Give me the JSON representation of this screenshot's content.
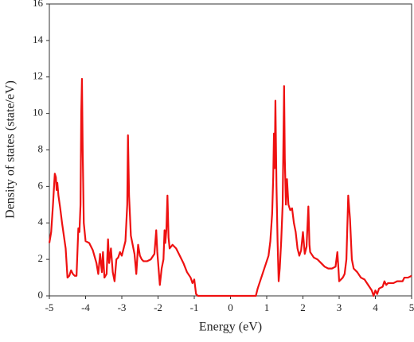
{
  "chart_data": {
    "type": "line",
    "x_label": "Energy (eV)",
    "y_label": "Density of states (state/eV)",
    "color": "#ee1111",
    "xlim": [
      -5,
      5
    ],
    "xticks": [
      -5,
      -4,
      -3,
      -2,
      -1,
      0,
      1,
      2,
      3,
      4,
      5
    ],
    "ylim": [
      0,
      16
    ],
    "yticks": [
      0,
      2,
      4,
      6,
      8,
      10,
      12,
      14,
      16
    ],
    "grid": false,
    "x": [
      -5,
      -4.95,
      -4.9,
      -4.85,
      -4.82,
      -4.8,
      -4.78,
      -4.75,
      -4.7,
      -4.65,
      -4.6,
      -4.55,
      -4.5,
      -4.45,
      -4.4,
      -4.35,
      -4.3,
      -4.25,
      -4.2,
      -4.17,
      -4.14,
      -4.12,
      -4.1,
      -4.08,
      -4.05,
      -4.0,
      -3.9,
      -3.8,
      -3.7,
      -3.65,
      -3.6,
      -3.55,
      -3.52,
      -3.48,
      -3.42,
      -3.38,
      -3.35,
      -3.3,
      -3.25,
      -3.2,
      -3.15,
      -3.1,
      -3.05,
      -3.0,
      -2.9,
      -2.85,
      -2.83,
      -2.8,
      -2.75,
      -2.7,
      -2.65,
      -2.6,
      -2.55,
      -2.5,
      -2.45,
      -2.4,
      -2.3,
      -2.2,
      -2.1,
      -2.05,
      -2.02,
      -1.95,
      -1.9,
      -1.85,
      -1.82,
      -1.8,
      -1.77,
      -1.74,
      -1.71,
      -1.68,
      -1.6,
      -1.5,
      -1.4,
      -1.3,
      -1.2,
      -1.1,
      -1.05,
      -1.0,
      -0.95,
      -0.9,
      0.7,
      0.75,
      0.8,
      0.85,
      0.9,
      0.95,
      1.0,
      1.05,
      1.1,
      1.15,
      1.18,
      1.2,
      1.22,
      1.24,
      1.27,
      1.3,
      1.33,
      1.36,
      1.4,
      1.44,
      1.48,
      1.5,
      1.53,
      1.56,
      1.6,
      1.65,
      1.7,
      1.75,
      1.8,
      1.85,
      1.9,
      1.95,
      2.0,
      2.05,
      2.1,
      2.15,
      2.18,
      2.2,
      2.3,
      2.4,
      2.5,
      2.6,
      2.7,
      2.8,
      2.9,
      2.95,
      2.98,
      3.0,
      3.1,
      3.15,
      3.2,
      3.25,
      3.3,
      3.35,
      3.4,
      3.5,
      3.6,
      3.7,
      3.8,
      3.9,
      3.95,
      4.0,
      4.05,
      4.1,
      4.2,
      4.25,
      4.3,
      4.35,
      4.5,
      4.6,
      4.75,
      4.8,
      4.9,
      5.0
    ],
    "values": [
      2.9,
      3.5,
      5.0,
      6.7,
      6.5,
      5.8,
      6.2,
      5.5,
      4.8,
      4.0,
      3.3,
      2.6,
      1.0,
      1.1,
      1.4,
      1.2,
      1.1,
      1.1,
      3.7,
      3.5,
      5.0,
      10.0,
      11.9,
      8.0,
      4.0,
      3.0,
      2.9,
      2.5,
      1.8,
      1.2,
      2.3,
      1.3,
      2.4,
      1.0,
      1.2,
      3.1,
      1.8,
      2.6,
      1.3,
      0.8,
      2.0,
      2.1,
      2.4,
      2.2,
      3.0,
      5.0,
      8.8,
      5.5,
      3.3,
      2.8,
      2.3,
      1.2,
      2.8,
      2.2,
      2.0,
      1.9,
      1.9,
      2.0,
      2.3,
      3.6,
      2.4,
      0.6,
      1.5,
      2.0,
      3.6,
      2.9,
      3.6,
      5.5,
      3.2,
      2.6,
      2.8,
      2.6,
      2.2,
      1.8,
      1.3,
      1.0,
      0.7,
      0.9,
      0.1,
      0,
      0,
      0.4,
      0.7,
      1.0,
      1.3,
      1.6,
      1.9,
      2.2,
      3.0,
      4.5,
      6.5,
      8.9,
      7.0,
      10.7,
      6.0,
      3.0,
      0.8,
      1.5,
      3.0,
      5.0,
      11.5,
      7.5,
      5.0,
      6.4,
      5.0,
      4.7,
      4.8,
      4.0,
      3.5,
      2.6,
      2.2,
      2.5,
      3.5,
      2.3,
      2.7,
      4.9,
      2.8,
      2.4,
      2.1,
      2.0,
      1.8,
      1.6,
      1.5,
      1.5,
      1.6,
      2.4,
      1.5,
      0.8,
      1.0,
      1.2,
      2.0,
      5.5,
      4.2,
      2.0,
      1.5,
      1.3,
      1.0,
      0.9,
      0.6,
      0.3,
      0.0,
      0.3,
      0.1,
      0.4,
      0.5,
      0.8,
      0.6,
      0.7,
      0.7,
      0.8,
      0.8,
      1.0,
      1.0,
      1.1
    ]
  }
}
